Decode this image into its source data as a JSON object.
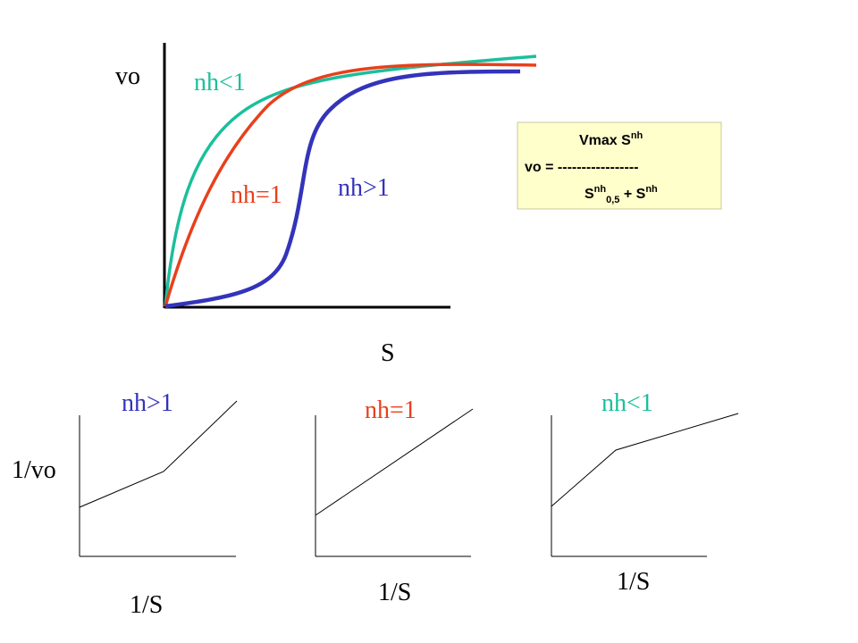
{
  "colors": {
    "nh_lt1": "#1bbf9c",
    "nh_eq1": "#e8401c",
    "nh_gt1": "#3333bb",
    "axis": "#000000",
    "formula_bg": "#ffffcc",
    "formula_border": "#c8c8a0"
  },
  "main_plot": {
    "y_axis_label": "vo",
    "x_axis_label": "S",
    "curve_labels": {
      "nh_lt1": "nh<1",
      "nh_eq1": "nh=1",
      "nh_gt1": "nh>1"
    }
  },
  "formula": {
    "numerator": "Vmax S",
    "numerator_sup": "nh",
    "lhs": "vo = -----------------",
    "denom_base": "S",
    "denom_sup": "nh",
    "denom_sub": "0,5",
    "denom_plus": " + S",
    "denom_sup2": "nh"
  },
  "small_plots": {
    "y_axis_label": "1/vo",
    "plots": [
      {
        "title": "nh>1",
        "x_label": "1/S"
      },
      {
        "title": "nh=1",
        "x_label": "1/S"
      },
      {
        "title": "nh<1",
        "x_label": "1/S"
      }
    ]
  }
}
